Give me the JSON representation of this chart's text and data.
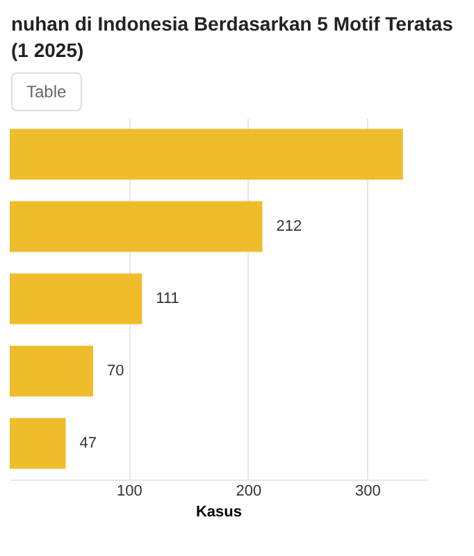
{
  "chart_data": {
    "type": "bar",
    "orientation": "horizontal",
    "title": "nuhan di Indonesia Berdasarkan 5 Motif Teratas (1 2025)",
    "annotations": [
      "Table"
    ],
    "categories": [
      null,
      null,
      null,
      null,
      null
    ],
    "values": [
      330,
      212,
      111,
      70,
      47
    ],
    "value_labels": [
      null,
      "212",
      "111",
      "70",
      "47"
    ],
    "color": "#efbc2b",
    "xlim": [
      0,
      350
    ],
    "xticks": [
      100,
      200,
      300
    ],
    "xlabel": "Kasus",
    "grid": "x"
  }
}
